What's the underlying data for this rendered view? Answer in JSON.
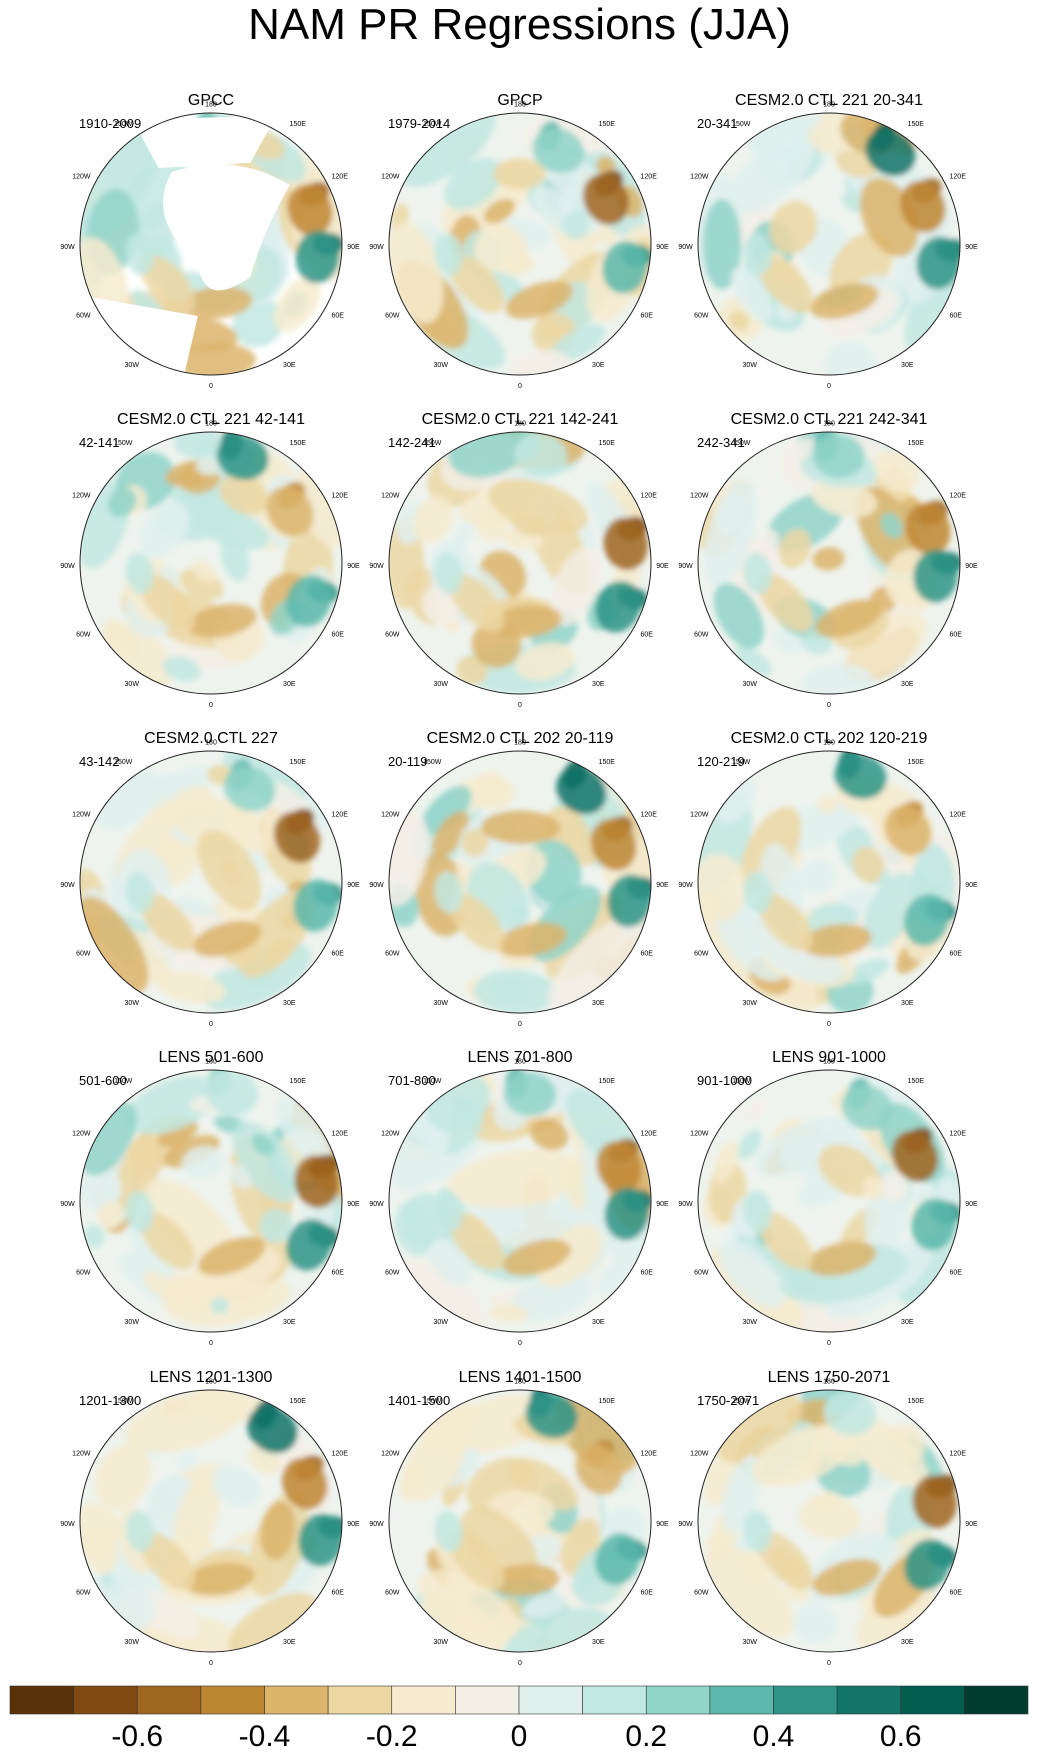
{
  "title": "NAM PR Regressions (JJA)",
  "panel_label_style": "polar stereographic maps of JJA precipitation regressed on NAM index",
  "lon_labels": {
    "top": "180",
    "top_left": "150W",
    "top_right": "150E",
    "upper_left": "120W",
    "upper_right": "120E",
    "left": "90W",
    "right": "90E",
    "lower_left": "60W",
    "lower_right": "60E",
    "bottom_left": "30W",
    "bottom_right": "30E",
    "bottom": "0"
  },
  "panels": [
    {
      "title": "GPCC",
      "period": "1910-2009",
      "land_only": true
    },
    {
      "title": "GPCP",
      "period": "1979-2014",
      "land_only": false
    },
    {
      "title": "CESM2.0 CTL 221 20-341",
      "period": "20-341",
      "land_only": false
    },
    {
      "title": "CESM2.0 CTL 221 42-141",
      "period": "42-141",
      "land_only": false
    },
    {
      "title": "CESM2.0 CTL 221 142-241",
      "period": "142-241",
      "land_only": false
    },
    {
      "title": "CESM2.0 CTL 221 242-341",
      "period": "242-341",
      "land_only": false
    },
    {
      "title": "CESM2.0 CTL 227",
      "period": "43-142",
      "land_only": false
    },
    {
      "title": "CESM2.0 CTL 202 20-119",
      "period": "20-119",
      "land_only": false
    },
    {
      "title": "CESM2.0 CTL 202 120-219",
      "period": "120-219",
      "land_only": false
    },
    {
      "title": "LENS 501-600",
      "period": "501-600",
      "land_only": false
    },
    {
      "title": "LENS 701-800",
      "period": "701-800",
      "land_only": false
    },
    {
      "title": "LENS 901-1000",
      "period": "901-1000",
      "land_only": false
    },
    {
      "title": "LENS 1201-1300",
      "period": "1201-1300",
      "land_only": false
    },
    {
      "title": "LENS 1401-1500",
      "period": "1401-1500",
      "land_only": false
    },
    {
      "title": "LENS 1750-2071",
      "period": "1750-2071",
      "land_only": false
    }
  ],
  "colorbar": {
    "colors": [
      "#5a3208",
      "#7f4a13",
      "#a0651f",
      "#bf8632",
      "#dcb46b",
      "#ecd7a3",
      "#f6ebcf",
      "#f3efe6",
      "#e0f0ee",
      "#c2e8e2",
      "#91d4c9",
      "#5bb9ab",
      "#2d9486",
      "#137468",
      "#045c4f",
      "#003c30"
    ],
    "tick_labels": [
      "-0.6",
      "-0.4",
      "-0.2",
      "0",
      "0.2",
      "0.4",
      "0.6"
    ],
    "tick_values": [
      -0.6,
      -0.4,
      -0.2,
      0,
      0.2,
      0.4,
      0.6
    ],
    "range": [
      -0.8,
      0.8
    ],
    "interval": 0.1
  }
}
